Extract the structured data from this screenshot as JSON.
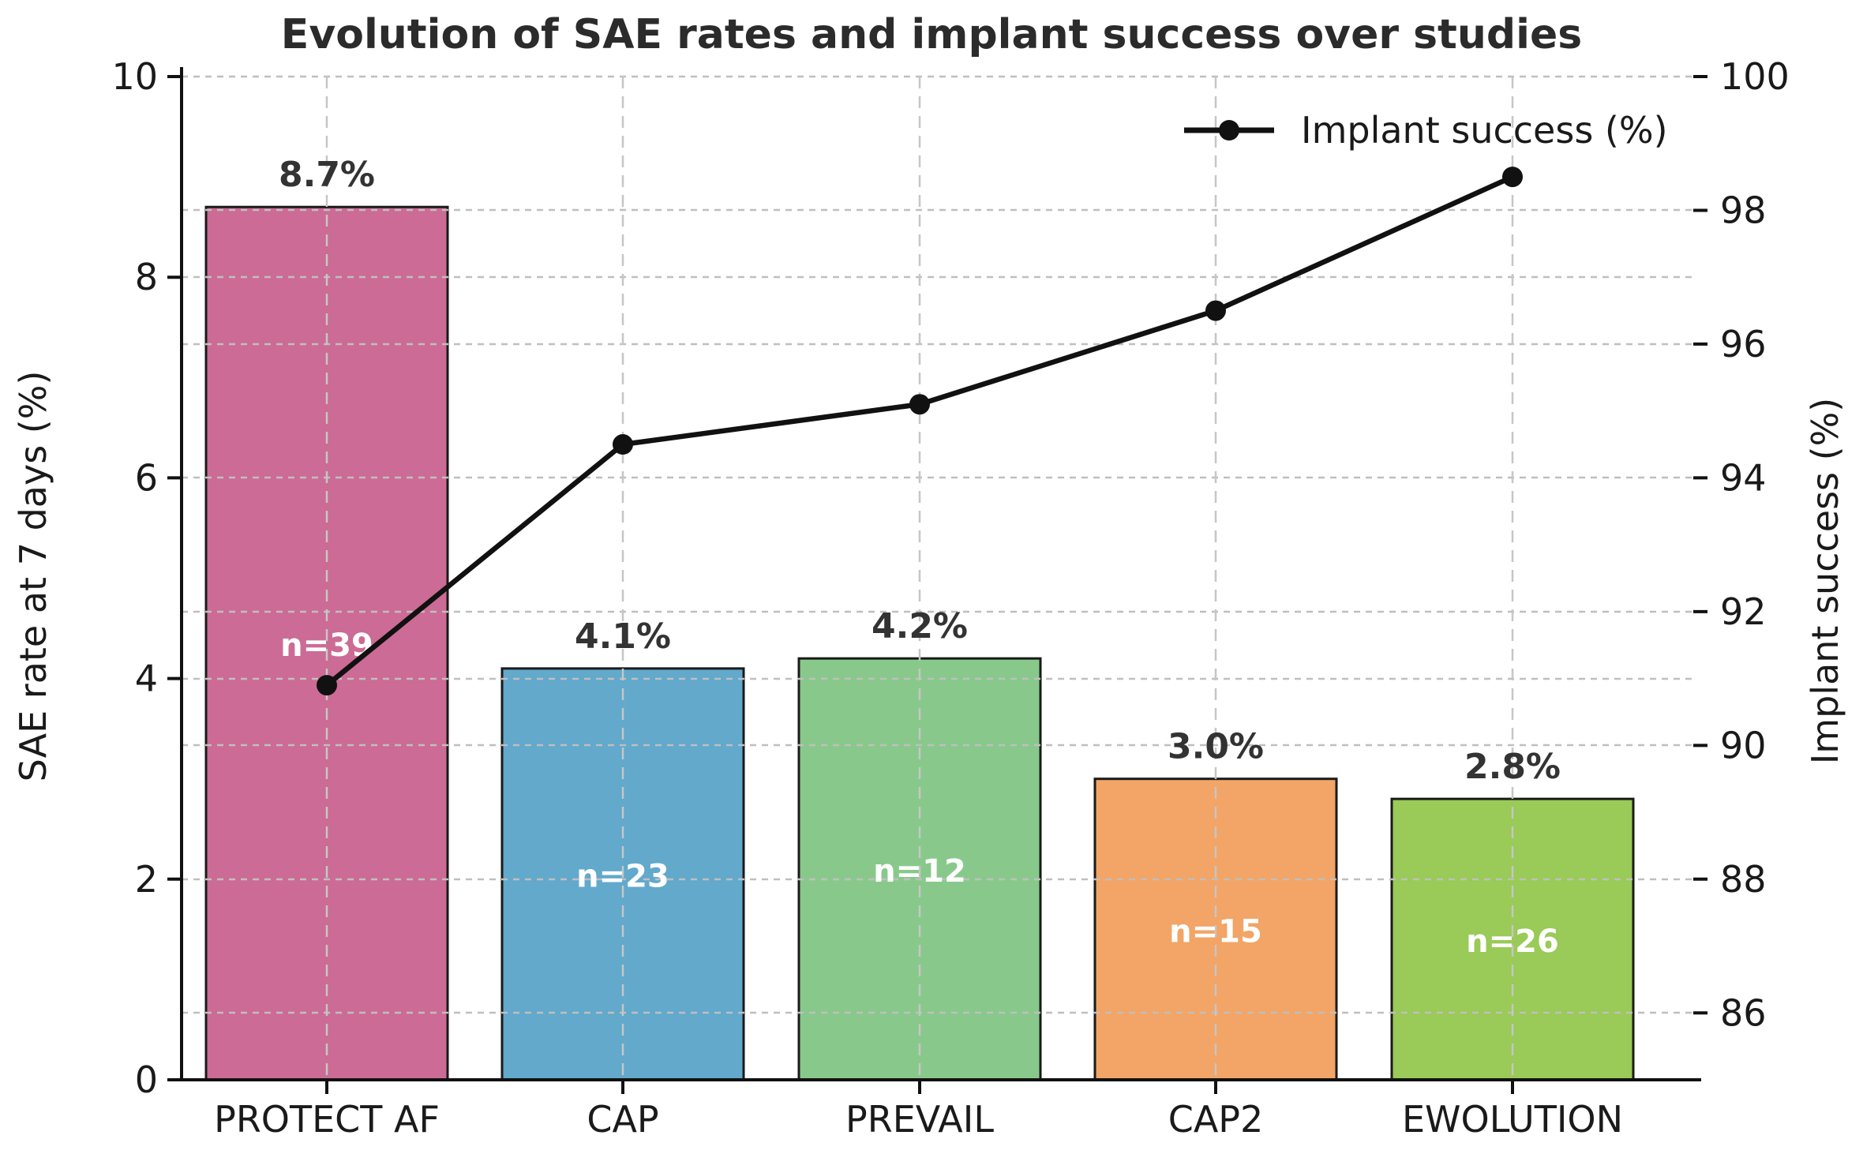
{
  "figure": {
    "title": "Evolution of SAE rates and implant success over studies",
    "background": "#ffffff"
  },
  "chart_data": {
    "type": "bar",
    "title": "Evolution of SAE rates and implant success over studies",
    "categories": [
      "PROTECT AF",
      "CAP",
      "PREVAIL",
      "CAP2",
      "EWOLUTION"
    ],
    "bar_series": {
      "name": "SAE rate at 7 days (%)",
      "axis": "left",
      "values": [
        8.7,
        4.1,
        4.2,
        3.0,
        2.8
      ],
      "value_labels": [
        "8.7%",
        "4.1%",
        "4.2%",
        "3.0%",
        "2.8%"
      ],
      "n_labels": [
        "n=39",
        "n=23",
        "n=12",
        "n=15",
        "n=26"
      ],
      "colors": [
        "#cc6b95",
        "#62a9cb",
        "#88c98b",
        "#f2a566",
        "#9aca57"
      ],
      "edge_color": "#1a1a1a"
    },
    "line_series": {
      "name": "Implant success (%)",
      "axis": "right",
      "values": [
        90.9,
        94.5,
        95.1,
        96.5,
        98.5
      ],
      "color": "#111111"
    },
    "left_axis": {
      "label": "SAE rate at 7 days (%)",
      "min": 0,
      "max": 10,
      "ticks": [
        0,
        2,
        4,
        6,
        8,
        10
      ],
      "tick_labels": [
        "0",
        "2",
        "4",
        "6",
        "8",
        "10"
      ]
    },
    "right_axis": {
      "label": "Implant success (%)",
      "min": 85,
      "max": 100,
      "ticks": [
        86,
        88,
        90,
        92,
        94,
        96,
        98,
        100
      ],
      "tick_labels": [
        "86",
        "88",
        "90",
        "92",
        "94",
        "96",
        "98",
        "100"
      ]
    },
    "legend": {
      "label": "Implant success (%)",
      "position": "upper right"
    },
    "grid": true,
    "grid_color": "#bfbfbf",
    "text_color": "#1a1a1a",
    "value_label_color": "#333333",
    "n_label_color": "#ffffff"
  }
}
